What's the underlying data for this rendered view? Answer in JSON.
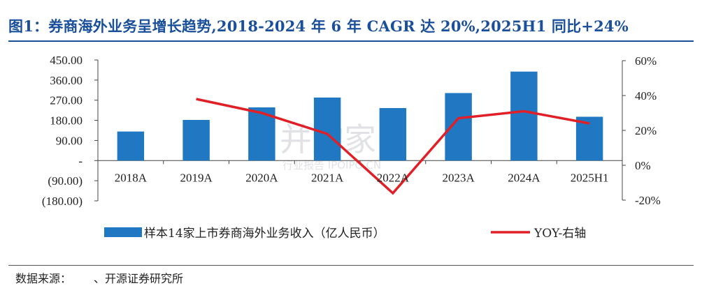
{
  "title": "图1：券商海外业务呈增长趋势,2018-2024 年 6 年 CAGR 达 20%,2025H1 同比+24%",
  "source": {
    "label": "数据来源：",
    "value": "、开源证券研究所"
  },
  "watermark": {
    "main": "并购家",
    "sub": "行业报告 IPOIPO.CN"
  },
  "colors": {
    "bar": "#1f78c1",
    "line": "#e01f26",
    "title": "#1a4f9c"
  },
  "chart_data": {
    "type": "bar",
    "categories": [
      "2018A",
      "2019A",
      "2020A",
      "2021A",
      "2022A",
      "2023A",
      "2024A",
      "2025H1"
    ],
    "series": [
      {
        "name": "样本14家上市券商海外业务收入（亿人民币）",
        "type": "bar",
        "axis": "left",
        "values": [
          130,
          182,
          238,
          282,
          235,
          302,
          398,
          196
        ]
      },
      {
        "name": "YOY-右轴",
        "type": "line",
        "axis": "right",
        "values": [
          null,
          38,
          30,
          18,
          -16,
          27,
          31,
          24
        ]
      }
    ],
    "left_axis": {
      "ticks": [
        450,
        360,
        270,
        180,
        90,
        0,
        -90,
        -180
      ],
      "tick_labels": [
        "450.00",
        "360.00",
        "270.00",
        "180.00",
        "90.00",
        "-",
        "(90.00)",
        "(180.00)"
      ],
      "range": [
        -180,
        450
      ]
    },
    "right_axis": {
      "ticks": [
        60,
        40,
        20,
        0,
        -20
      ],
      "tick_labels": [
        "60%",
        "40%",
        "20%",
        "0%",
        "-20%"
      ],
      "range": [
        -20,
        60
      ]
    },
    "legend_position": "bottom",
    "grid": false
  }
}
